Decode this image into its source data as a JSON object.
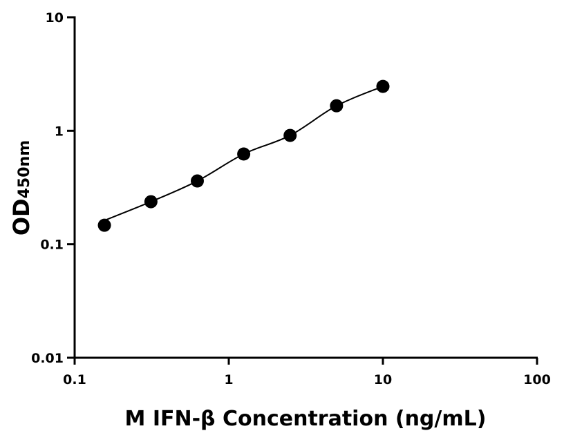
{
  "chart_data": {
    "type": "scatter",
    "xlabel": "M IFN-β Concentration (ng/mL)",
    "ylabel": "OD",
    "ylabel_subscript": "450nm",
    "x_scale": "log",
    "y_scale": "log",
    "xlim": [
      0.1,
      100
    ],
    "ylim": [
      0.01,
      10
    ],
    "x_ticks": [
      "0.1",
      "1",
      "10",
      "100"
    ],
    "y_ticks": [
      "0.01",
      "0.1",
      "1",
      "10"
    ],
    "grid": false,
    "marker_color": "#000000",
    "fit_curve": true,
    "series": [
      {
        "x": [
          0.156,
          0.3125,
          0.625,
          1.25,
          2.5,
          5,
          10
        ],
        "y": [
          0.147,
          0.237,
          0.361,
          0.624,
          0.91,
          1.66,
          2.46
        ]
      }
    ]
  }
}
